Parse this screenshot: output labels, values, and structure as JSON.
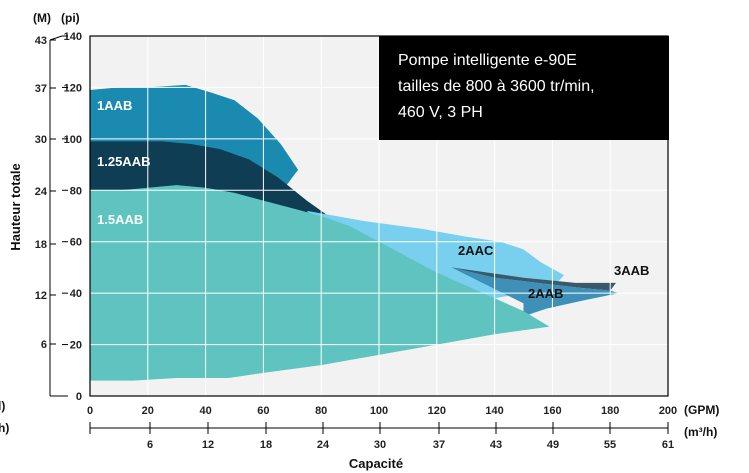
{
  "chart_data": {
    "type": "area",
    "xlabel": "Capacité",
    "ylabel": "Hauteur totale",
    "x_units": {
      "primary": "(GPM)",
      "secondary": "(m³/h)"
    },
    "y_units": {
      "primary": "(pi)",
      "secondary": "(M)"
    },
    "xlim": [
      0,
      200
    ],
    "ylim": [
      0,
      140
    ],
    "x_ticks": [
      0,
      20,
      40,
      60,
      80,
      100,
      120,
      140,
      160,
      180,
      200
    ],
    "x_ticks_secondary": [
      "6",
      "12",
      "18",
      "24",
      "30",
      "37",
      "43",
      "49",
      "55",
      "61"
    ],
    "x_ticks_secondary_cut": [
      "l)",
      "h)"
    ],
    "y_ticks": [
      0,
      20,
      40,
      60,
      80,
      100,
      120,
      140
    ],
    "y_ticks_secondary": [
      "6",
      "12",
      "18",
      "24",
      "30",
      "37",
      "43"
    ],
    "grid": true,
    "annotation": [
      "Pompe intelligente e-90E",
      "tailles de 800 à 3600 tr/min,",
      "460 V, 3 PH"
    ],
    "series": [
      {
        "name": "1AAB",
        "color": "#1b8ab0",
        "points": [
          [
            0,
            119
          ],
          [
            10,
            120
          ],
          [
            20,
            120
          ],
          [
            33,
            121
          ],
          [
            42,
            118
          ],
          [
            50,
            115
          ],
          [
            58,
            108
          ],
          [
            66,
            98
          ],
          [
            72,
            88
          ],
          [
            60,
            70
          ],
          [
            0,
            70
          ]
        ]
      },
      {
        "name": "1.25AAB",
        "color": "#0f3d54",
        "points": [
          [
            0,
            99
          ],
          [
            12,
            99
          ],
          [
            25,
            99
          ],
          [
            35,
            98
          ],
          [
            45,
            96
          ],
          [
            55,
            92
          ],
          [
            65,
            85
          ],
          [
            75,
            76
          ],
          [
            85,
            68
          ],
          [
            90,
            66
          ],
          [
            98,
            62
          ],
          [
            100,
            56
          ],
          [
            0,
            56
          ]
        ]
      },
      {
        "name": "2AAC",
        "color": "#78d0ee",
        "points": [
          [
            75,
            72
          ],
          [
            95,
            68
          ],
          [
            115,
            65
          ],
          [
            130,
            62
          ],
          [
            142,
            60
          ],
          [
            150,
            57
          ],
          [
            156,
            52
          ],
          [
            164,
            47
          ],
          [
            160,
            42
          ],
          [
            140,
            38
          ],
          [
            120,
            40
          ],
          [
            100,
            46
          ],
          [
            85,
            60
          ]
        ]
      },
      {
        "name": "3AAB",
        "color": "#3a5a6a",
        "points": [
          [
            125,
            50
          ],
          [
            140,
            46
          ],
          [
            155,
            44
          ],
          [
            170,
            42
          ],
          [
            180,
            41
          ],
          [
            182,
            44
          ],
          [
            168,
            44
          ],
          [
            150,
            46
          ]
        ]
      },
      {
        "name": "2AAB",
        "color": "#3e90b8",
        "points": [
          [
            125,
            50
          ],
          [
            140,
            46
          ],
          [
            155,
            44
          ],
          [
            170,
            42
          ],
          [
            180,
            41
          ],
          [
            183,
            40
          ],
          [
            170,
            37
          ],
          [
            158,
            34
          ],
          [
            150,
            31
          ],
          [
            150,
            36
          ]
        ]
      },
      {
        "name": "1.5AAB",
        "color": "#5fc4c0",
        "points": [
          [
            0,
            80
          ],
          [
            10,
            80
          ],
          [
            20,
            81
          ],
          [
            30,
            82
          ],
          [
            40,
            81
          ],
          [
            50,
            79
          ],
          [
            60,
            76
          ],
          [
            70,
            73
          ],
          [
            80,
            70
          ],
          [
            90,
            66
          ],
          [
            100,
            60
          ],
          [
            110,
            54
          ],
          [
            120,
            48
          ],
          [
            130,
            43
          ],
          [
            140,
            38
          ],
          [
            150,
            33
          ],
          [
            159,
            27
          ],
          [
            140,
            24
          ],
          [
            120,
            20
          ],
          [
            100,
            16
          ],
          [
            80,
            12
          ],
          [
            60,
            9
          ],
          [
            48,
            7
          ],
          [
            30,
            7
          ],
          [
            15,
            6
          ],
          [
            0,
            6
          ]
        ]
      }
    ]
  }
}
